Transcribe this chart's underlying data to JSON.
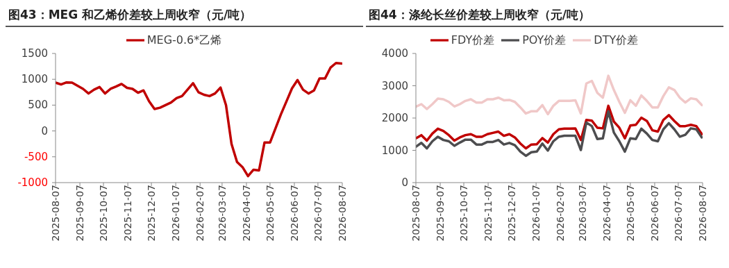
{
  "chart_data": [
    {
      "type": "line",
      "title": "图43：MEG 和乙烯价差较上周收窄（元/吨）",
      "x": [
        "2025-08-07",
        "2025-08-14",
        "2025-08-21",
        "2025-08-28",
        "2025-09-04",
        "2025-09-11",
        "2025-09-18",
        "2025-09-25",
        "2025-10-02",
        "2025-10-09",
        "2025-10-16",
        "2025-10-23",
        "2025-10-30",
        "2025-11-06",
        "2025-11-13",
        "2025-11-20",
        "2025-11-27",
        "2025-12-04",
        "2025-12-11",
        "2025-12-18",
        "2025-12-25",
        "2026-01-01",
        "2026-01-08",
        "2026-01-15",
        "2026-01-22",
        "2026-01-29",
        "2026-02-05",
        "2026-02-12",
        "2026-02-19",
        "2026-02-26",
        "2026-03-05",
        "2026-03-12",
        "2026-03-19",
        "2026-03-26",
        "2026-04-02",
        "2026-04-09",
        "2026-04-16",
        "2026-04-23",
        "2026-04-30",
        "2026-05-07",
        "2026-05-14",
        "2026-05-21",
        "2026-05-28",
        "2026-06-04",
        "2026-06-11",
        "2026-06-18",
        "2026-06-25",
        "2026-07-02",
        "2026-07-09",
        "2026-07-16",
        "2026-07-23",
        "2026-07-30",
        "2026-08-06"
      ],
      "series": [
        {
          "name": "MEG-0.6*乙烯",
          "color": "#c00000",
          "values": [
            935,
            900,
            940,
            935,
            875,
            815,
            725,
            800,
            850,
            725,
            815,
            860,
            910,
            835,
            815,
            740,
            785,
            575,
            425,
            450,
            500,
            550,
            635,
            675,
            800,
            925,
            750,
            700,
            675,
            725,
            840,
            500,
            -250,
            -600,
            -700,
            -875,
            -750,
            -765,
            -225,
            -225,
            50,
            325,
            575,
            825,
            985,
            800,
            725,
            785,
            1015,
            1015,
            1225,
            1315,
            1305
          ]
        }
      ],
      "xlim": [
        "2025-08-07",
        "2026-08-07"
      ],
      "xticks": [
        "2025-08-07",
        "2025-09-07",
        "2025-10-07",
        "2025-11-07",
        "2025-12-07",
        "2026-01-07",
        "2026-02-07",
        "2026-03-07",
        "2026-04-07",
        "2026-05-07",
        "2026-06-07",
        "2026-07-07",
        "2026-08-07"
      ],
      "ylim": [
        -1000,
        1500
      ],
      "yticks": [
        -1000,
        -500,
        0,
        500,
        1000,
        1500
      ],
      "legend": "top",
      "grid": false
    },
    {
      "type": "line",
      "title": "图44：涤纶长丝价差较上周收窄（元/吨）",
      "x": [
        "2025-08-07",
        "2025-08-14",
        "2025-08-21",
        "2025-08-28",
        "2025-09-04",
        "2025-09-11",
        "2025-09-18",
        "2025-09-25",
        "2025-10-02",
        "2025-10-09",
        "2025-10-16",
        "2025-10-23",
        "2025-10-30",
        "2025-11-06",
        "2025-11-13",
        "2025-11-20",
        "2025-11-27",
        "2025-12-04",
        "2025-12-11",
        "2025-12-18",
        "2025-12-25",
        "2026-01-01",
        "2026-01-08",
        "2026-01-15",
        "2026-01-22",
        "2026-01-29",
        "2026-02-05",
        "2026-02-12",
        "2026-02-19",
        "2026-02-26",
        "2026-03-05",
        "2026-03-12",
        "2026-03-19",
        "2026-03-26",
        "2026-04-02",
        "2026-04-09",
        "2026-04-16",
        "2026-04-23",
        "2026-04-30",
        "2026-05-07",
        "2026-05-14",
        "2026-05-21",
        "2026-05-28",
        "2026-06-04",
        "2026-06-11",
        "2026-06-18",
        "2026-06-25",
        "2026-07-02",
        "2026-07-09",
        "2026-07-16",
        "2026-07-23",
        "2026-07-30",
        "2026-08-06"
      ],
      "series": [
        {
          "name": "FDY价差",
          "color": "#c00000",
          "values": [
            1370,
            1470,
            1300,
            1520,
            1670,
            1600,
            1470,
            1300,
            1400,
            1470,
            1500,
            1420,
            1420,
            1500,
            1540,
            1580,
            1450,
            1500,
            1400,
            1210,
            1060,
            1180,
            1190,
            1380,
            1240,
            1500,
            1650,
            1670,
            1670,
            1680,
            1320,
            1940,
            1920,
            1700,
            1680,
            2380,
            1890,
            1700,
            1370,
            1770,
            1790,
            2010,
            1910,
            1620,
            1580,
            1940,
            2090,
            1910,
            1750,
            1750,
            1790,
            1750,
            1500
          ]
        },
        {
          "name": "POY价差",
          "color": "#4d4d4f",
          "values": [
            1110,
            1230,
            1060,
            1280,
            1420,
            1320,
            1280,
            1140,
            1240,
            1330,
            1330,
            1180,
            1180,
            1260,
            1260,
            1320,
            1180,
            1230,
            1160,
            960,
            830,
            940,
            960,
            1210,
            990,
            1280,
            1420,
            1450,
            1450,
            1450,
            1010,
            1860,
            1750,
            1350,
            1370,
            2210,
            1550,
            1280,
            960,
            1370,
            1350,
            1670,
            1520,
            1320,
            1280,
            1650,
            1840,
            1650,
            1420,
            1480,
            1680,
            1650,
            1400
          ]
        },
        {
          "name": "DTY价差",
          "color": "#f0c8c8",
          "values": [
            2350,
            2430,
            2280,
            2430,
            2600,
            2580,
            2500,
            2360,
            2430,
            2530,
            2580,
            2480,
            2480,
            2580,
            2580,
            2630,
            2550,
            2560,
            2500,
            2330,
            2140,
            2210,
            2210,
            2400,
            2120,
            2380,
            2530,
            2530,
            2530,
            2550,
            2140,
            3070,
            3150,
            2780,
            2630,
            3310,
            2870,
            2500,
            2160,
            2550,
            2380,
            2700,
            2530,
            2330,
            2330,
            2680,
            2950,
            2870,
            2630,
            2480,
            2610,
            2580,
            2400
          ]
        }
      ],
      "xlim": [
        "2025-08-07",
        "2026-08-07"
      ],
      "xticks": [
        "2025-08-07",
        "2025-09-07",
        "2025-10-07",
        "2025-11-07",
        "2025-12-07",
        "2026-01-07",
        "2026-02-07",
        "2026-03-07",
        "2026-04-07",
        "2026-05-07",
        "2026-06-07",
        "2026-07-07",
        "2026-08-07"
      ],
      "ylim": [
        0,
        4000
      ],
      "yticks": [
        0,
        1000,
        2000,
        3000,
        4000
      ],
      "legend": "top",
      "grid": false
    }
  ]
}
